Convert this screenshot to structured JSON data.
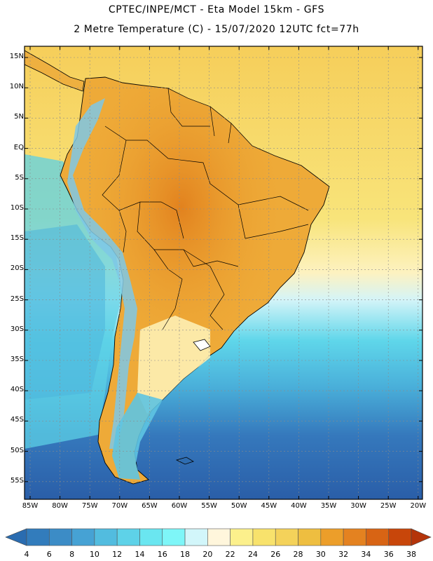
{
  "header": {
    "line1": "CPTEC/INPE/MCT -  Eta Model 15km - GFS",
    "line2": "2 Metre Temperature (C) - 15/07/2020 12UTC fct=77h"
  },
  "map": {
    "lat_labels": [
      "15N",
      "10N",
      "5N",
      "EQ",
      "5S",
      "10S",
      "15S",
      "20S",
      "25S",
      "30S",
      "35S",
      "40S",
      "45S",
      "50S",
      "55S"
    ],
    "lon_labels": [
      "85W",
      "80W",
      "75W",
      "70W",
      "65W",
      "60W",
      "55W",
      "50W",
      "45W",
      "40W",
      "35W",
      "30W",
      "25W",
      "20W"
    ],
    "ocean_color": "#f6c84e"
  },
  "colorbar": {
    "labels": [
      "4",
      "6",
      "8",
      "10",
      "12",
      "14",
      "16",
      "18",
      "20",
      "22",
      "24",
      "26",
      "28",
      "30",
      "32",
      "34",
      "36",
      "38"
    ],
    "colors": [
      "#2a6cb0",
      "#327cbc",
      "#3c8cc6",
      "#46a2d4",
      "#52bcdf",
      "#5ed2e8",
      "#6ae6f0",
      "#7ef6f8",
      "#d2f6fa",
      "#fff6dc",
      "#fcf08c",
      "#f8e26c",
      "#f4d25a",
      "#eebe40",
      "#ec9e2a",
      "#e48220",
      "#d86414",
      "#c8460a",
      "#b4340a"
    ]
  }
}
